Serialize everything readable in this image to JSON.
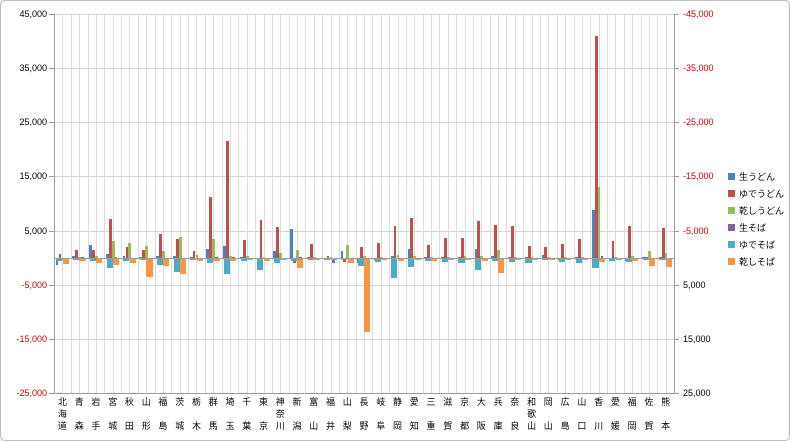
{
  "chart_data": {
    "type": "bar",
    "title": "",
    "xlabel": "",
    "ylabel": "",
    "grid": true,
    "legend_position": "right",
    "left_axis": {
      "tick_labels": [
        "45,000",
        "35,000",
        "25,000",
        "15,000",
        "5,000",
        "-5,000",
        "-15,000",
        "-25,000"
      ],
      "tick_values": [
        45000,
        35000,
        25000,
        15000,
        5000,
        -5000,
        -15000,
        -25000
      ],
      "range": [
        -25000,
        45000
      ],
      "negative_tick_color": "#cc0000"
    },
    "right_axis": {
      "tick_labels": [
        "-45,000",
        "-35,000",
        "-25,000",
        "-15,000",
        "-5,000",
        "5,000",
        "15,000",
        "25,000"
      ],
      "note": "secondary axis, inverted (negative values at top)",
      "negative_tick_color": "#cc0000"
    },
    "categories": [
      "北海道",
      "青森",
      "岩手",
      "宮城",
      "秋田",
      "山形",
      "福島",
      "茨城",
      "栃木",
      "群馬",
      "埼玉",
      "千葉",
      "東京",
      "神奈川",
      "新潟",
      "富山",
      "福井",
      "山梨",
      "長野",
      "岐阜",
      "静岡",
      "愛知",
      "三重",
      "滋賀",
      "京都",
      "大阪",
      "兵庫",
      "奈良",
      "和歌山",
      "岡山",
      "広島",
      "山口",
      "香川",
      "愛媛",
      "福岡",
      "佐賀",
      "熊本"
    ],
    "series": [
      {
        "name": "生うどん",
        "color": "#4f81bd",
        "axis": "primary",
        "values": [
          -1200,
          400,
          2300,
          700,
          400,
          200,
          300,
          400,
          100,
          1600,
          2200,
          200,
          -300,
          1200,
          5300,
          100,
          -200,
          1300,
          -800,
          -200,
          300,
          1600,
          200,
          100,
          200,
          1600,
          400,
          200,
          100,
          500,
          -300,
          200,
          8900,
          -200,
          -500,
          100,
          200
        ]
      },
      {
        "name": "ゆでうどん",
        "color": "#c0504d",
        "axis": "primary",
        "values": [
          700,
          1500,
          1500,
          7200,
          1900,
          1400,
          4300,
          3400,
          1200,
          11200,
          21500,
          3200,
          6900,
          5600,
          -900,
          2600,
          300,
          -600,
          1900,
          2800,
          5800,
          7300,
          2300,
          3700,
          3700,
          6700,
          6100,
          5800,
          2200,
          1900,
          2500,
          3500,
          41000,
          3000,
          5900,
          200,
          5500
        ]
      },
      {
        "name": "乾しうどん",
        "color": "#9bbb59",
        "axis": "primary",
        "values": [
          -200,
          200,
          300,
          3000,
          2700,
          2200,
          1300,
          3800,
          500,
          3400,
          300,
          300,
          200,
          800,
          1400,
          200,
          100,
          2300,
          300,
          200,
          500,
          400,
          200,
          200,
          300,
          300,
          1500,
          200,
          100,
          200,
          200,
          200,
          13100,
          200,
          300,
          1300,
          900
        ]
      },
      {
        "name": "生そば",
        "color": "#8064a2",
        "axis": "primary",
        "values": [
          -300,
          100,
          -100,
          200,
          -100,
          -300,
          -200,
          -200,
          -100,
          200,
          100,
          -100,
          -200,
          -300,
          200,
          -100,
          -900,
          -200,
          -400,
          -100,
          -200,
          -200,
          -100,
          -100,
          -200,
          -200,
          -300,
          -100,
          -100,
          -100,
          -100,
          -100,
          400,
          -100,
          -100,
          -100,
          -100
        ]
      },
      {
        "name": "ゆでそば",
        "color": "#4bacc6",
        "axis": "secondary",
        "values": [
          -500,
          -300,
          -400,
          -1800,
          -400,
          -300,
          -1100,
          -2400,
          -300,
          -800,
          -2900,
          -400,
          -2200,
          -800,
          -500,
          -300,
          -200,
          -300,
          -1400,
          -600,
          -3600,
          -1500,
          -500,
          -600,
          -900,
          -2100,
          -400,
          -700,
          -800,
          -300,
          -600,
          -800,
          -1800,
          -400,
          -700,
          -300,
          -300
        ]
      },
      {
        "name": "乾しそば",
        "color": "#f79646",
        "axis": "secondary",
        "values": [
          -1000,
          -400,
          -900,
          -1100,
          -800,
          -3400,
          -1400,
          -2900,
          -400,
          -400,
          -500,
          -300,
          -400,
          -300,
          -1700,
          -300,
          -300,
          -900,
          -13500,
          -300,
          -400,
          -300,
          -400,
          -200,
          -300,
          -500,
          -2600,
          -200,
          -200,
          -200,
          -300,
          -300,
          -600,
          -300,
          -400,
          -1300,
          -1500
        ]
      }
    ]
  }
}
